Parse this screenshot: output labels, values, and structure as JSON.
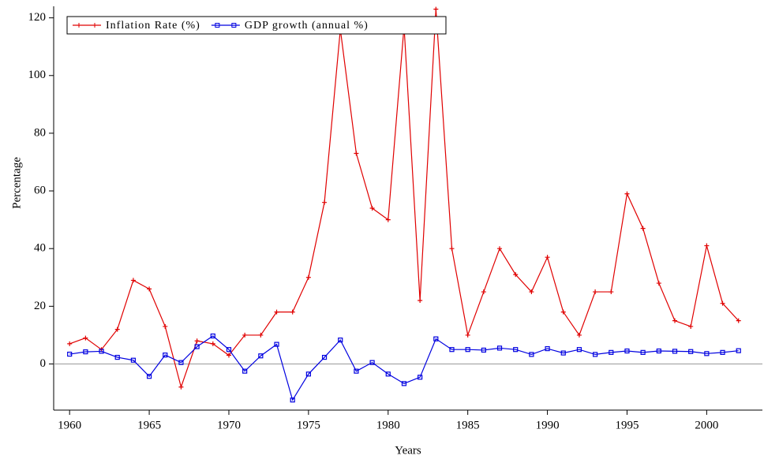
{
  "chart_data": {
    "type": "line",
    "x_label": "Years",
    "y_label": "Percentage",
    "x": [
      1960,
      1961,
      1962,
      1963,
      1964,
      1965,
      1966,
      1967,
      1968,
      1969,
      1970,
      1971,
      1972,
      1973,
      1974,
      1975,
      1976,
      1977,
      1978,
      1979,
      1980,
      1981,
      1982,
      1983,
      1984,
      1985,
      1986,
      1987,
      1988,
      1989,
      1990,
      1991,
      1992,
      1993,
      1994,
      1995,
      1996,
      1997,
      1998,
      1999,
      2000,
      2001,
      2002
    ],
    "series": [
      {
        "name": "Inflation Rate (%)",
        "color": "#e00000",
        "marker": "plus",
        "values": [
          7,
          9,
          5,
          12,
          29,
          26,
          13,
          -8,
          8,
          7,
          3,
          10,
          10,
          18,
          18,
          30,
          56,
          116,
          73,
          54,
          50,
          117,
          22,
          123,
          40,
          10,
          25,
          40,
          31,
          25,
          37,
          18,
          10,
          25,
          25,
          59,
          47,
          28,
          15,
          13,
          41,
          21,
          15
        ]
      },
      {
        "name": "GDP growth (annual %)",
        "color": "#0000e0",
        "marker": "square",
        "values": [
          3.4,
          4.2,
          4.4,
          2.3,
          1.3,
          -4.3,
          3.1,
          0.5,
          6,
          9.7,
          5,
          -2.5,
          2.8,
          6.8,
          -12.5,
          -3.5,
          2.3,
          8.3,
          -2.5,
          0.5,
          -3.5,
          -6.8,
          -4.6,
          8.7,
          5,
          5,
          4.8,
          5.5,
          5,
          3.3,
          5.3,
          3.8,
          5,
          3.3,
          4,
          4.5,
          4,
          4.5,
          4.4,
          4.3,
          3.6,
          4,
          4.6
        ]
      }
    ],
    "xlim": [
      1959,
      2003.5
    ],
    "xticks": [
      1960,
      1965,
      1970,
      1975,
      1980,
      1985,
      1990,
      1995,
      2000
    ],
    "ylim": [
      -16,
      124
    ],
    "yticks": [
      0,
      20,
      40,
      60,
      80,
      100,
      120
    ],
    "zero_line": true,
    "legend": "top-left"
  }
}
